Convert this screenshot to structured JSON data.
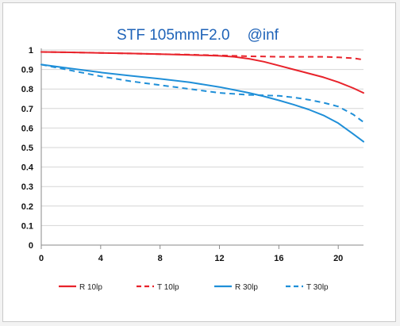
{
  "chart_data": {
    "type": "line",
    "title_parts": [
      "STF 105mmF2.0",
      "@inf"
    ],
    "xlabel": "",
    "ylabel": "",
    "xlim": [
      0,
      21.7
    ],
    "ylim": [
      0,
      1
    ],
    "xticks": [
      "0",
      "4",
      "8",
      "12",
      "16",
      "20"
    ],
    "yticks": [
      "0",
      "0.1",
      "0.2",
      "0.3",
      "0.4",
      "0.5",
      "0.6",
      "0.7",
      "0.8",
      "0.9",
      "1"
    ],
    "grid": "horizontal",
    "legend_position": "bottom",
    "series": [
      {
        "name": "R 10lp",
        "color": "#e8232b",
        "dash": "solid",
        "x": [
          0,
          2,
          4,
          6,
          8,
          10,
          12,
          13,
          14,
          15,
          16,
          17,
          18,
          19,
          20,
          21,
          21.7
        ],
        "y": [
          0.99,
          0.988,
          0.985,
          0.982,
          0.979,
          0.975,
          0.97,
          0.965,
          0.955,
          0.94,
          0.92,
          0.9,
          0.88,
          0.86,
          0.835,
          0.805,
          0.78
        ]
      },
      {
        "name": "T 10lp",
        "color": "#e8232b",
        "dash": "dashed",
        "x": [
          0,
          2,
          4,
          6,
          8,
          10,
          12,
          14,
          16,
          18,
          19,
          20,
          21,
          21.7
        ],
        "y": [
          0.99,
          0.988,
          0.985,
          0.982,
          0.979,
          0.976,
          0.972,
          0.968,
          0.965,
          0.965,
          0.965,
          0.962,
          0.958,
          0.95
        ]
      },
      {
        "name": "R 30lp",
        "color": "#1f8fd8",
        "dash": "solid",
        "x": [
          0,
          2,
          4,
          6,
          8,
          10,
          12,
          13,
          14,
          15,
          16,
          17,
          18,
          19,
          20,
          21,
          21.7
        ],
        "y": [
          0.925,
          0.905,
          0.885,
          0.868,
          0.852,
          0.834,
          0.81,
          0.795,
          0.78,
          0.762,
          0.742,
          0.72,
          0.695,
          0.665,
          0.625,
          0.57,
          0.53
        ]
      },
      {
        "name": "T 30lp",
        "color": "#1f8fd8",
        "dash": "dashed",
        "x": [
          0,
          2,
          4,
          6,
          8,
          10,
          12,
          14,
          16,
          17,
          18,
          19,
          20,
          21,
          21.7
        ],
        "y": [
          0.925,
          0.895,
          0.865,
          0.84,
          0.82,
          0.8,
          0.78,
          0.77,
          0.765,
          0.757,
          0.745,
          0.73,
          0.71,
          0.67,
          0.63
        ]
      }
    ]
  }
}
